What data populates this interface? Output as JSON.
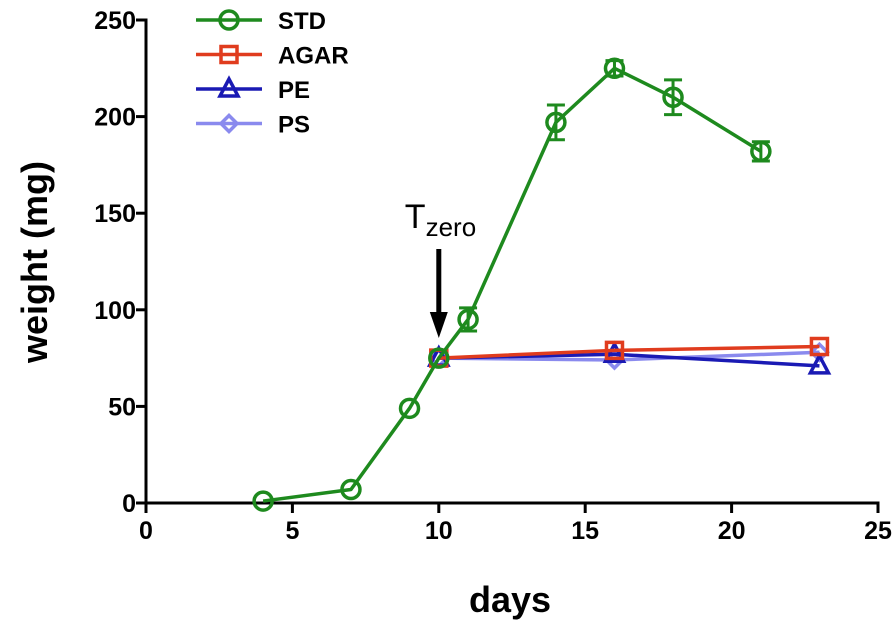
{
  "chart_data": {
    "type": "line",
    "title": "",
    "xlabel": "days",
    "ylabel": "weight (mg)",
    "xlim": [
      0,
      25
    ],
    "ylim": [
      0,
      250
    ],
    "xticks": [
      0,
      5,
      10,
      15,
      20,
      25
    ],
    "yticks": [
      0,
      50,
      100,
      150,
      200,
      250
    ],
    "grid": false,
    "legend_position": "top-left",
    "annotation": {
      "text": "T",
      "subscript": "zero",
      "x": 10,
      "points_to": 75,
      "arrow": "down"
    },
    "series": [
      {
        "name": "STD",
        "color": "#1e8a1e",
        "marker": "circle",
        "x": [
          4,
          7,
          9,
          10,
          11,
          14,
          16,
          18,
          21
        ],
        "y": [
          1,
          7,
          49,
          75,
          95,
          197,
          225,
          210,
          182
        ],
        "err": [
          0,
          0,
          0,
          0,
          6,
          9,
          4,
          9,
          5
        ]
      },
      {
        "name": "AGAR",
        "color": "#e03c1e",
        "marker": "square",
        "x": [
          10,
          16,
          23
        ],
        "y": [
          75,
          79,
          81
        ],
        "err": [
          0,
          0,
          0
        ]
      },
      {
        "name": "PE",
        "color": "#1a1ab4",
        "marker": "triangle",
        "x": [
          10,
          16,
          23
        ],
        "y": [
          75,
          77,
          71
        ],
        "err": [
          0,
          0,
          0
        ]
      },
      {
        "name": "PS",
        "color": "#8a8aee",
        "marker": "diamond",
        "x": [
          10,
          16,
          23
        ],
        "y": [
          75,
          74,
          78
        ],
        "err": [
          0,
          0,
          0
        ]
      }
    ]
  }
}
